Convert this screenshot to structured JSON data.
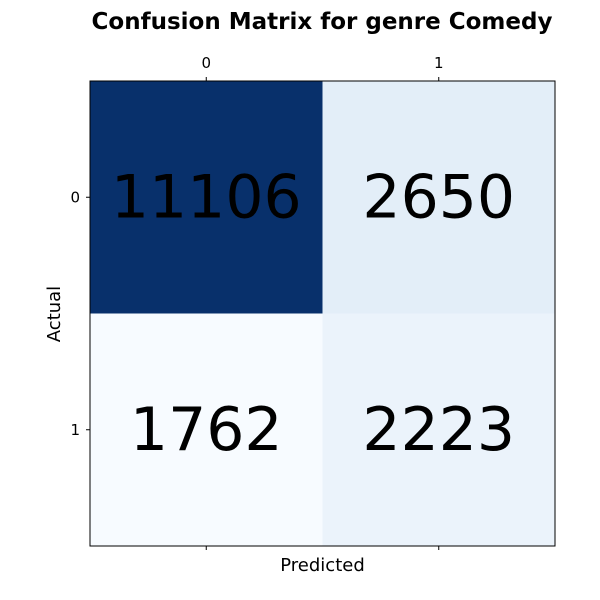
{
  "chart_data": {
    "type": "heatmap",
    "title": "Confusion Matrix for genre Comedy",
    "xlabel": "Predicted",
    "ylabel": "Actual",
    "x_ticks": [
      "0",
      "1"
    ],
    "y_ticks": [
      "0",
      "1"
    ],
    "x_tick_position": "top",
    "colormap": "Blues",
    "grid": false,
    "matrix": [
      [
        11106,
        2650
      ],
      [
        1762,
        2223
      ]
    ],
    "cell_labels": [
      [
        "11106",
        "2650"
      ],
      [
        "1762",
        "2223"
      ]
    ],
    "cell_colors": [
      [
        "#08306b",
        "#e3eef8"
      ],
      [
        "#f7fbff",
        "#ebf3fb"
      ]
    ]
  }
}
